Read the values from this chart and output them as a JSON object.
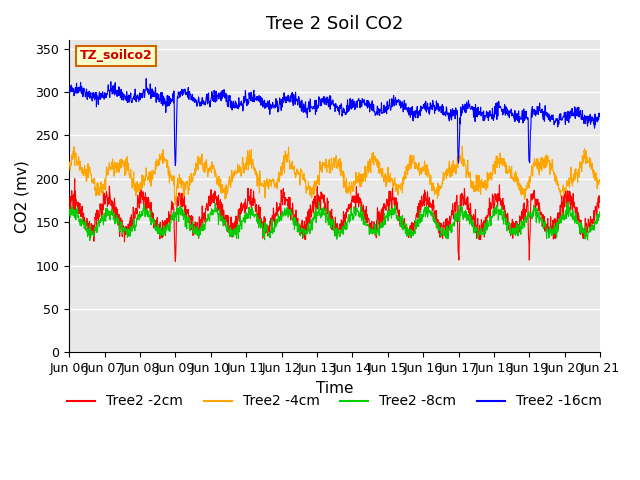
{
  "title": "Tree 2 Soil CO2",
  "ylabel": "CO2 (mv)",
  "xlabel": "Time",
  "legend_label": "TZ_soilco2",
  "series_labels": [
    "Tree2 -2cm",
    "Tree2 -4cm",
    "Tree2 -8cm",
    "Tree2 -16cm"
  ],
  "series_colors": [
    "#ff0000",
    "#ffa500",
    "#00cc00",
    "#0000ff"
  ],
  "background_color": "#e8e8e8",
  "plot_bg_color": "#e8e8e8",
  "ylim": [
    0,
    360
  ],
  "yticks": [
    0,
    50,
    100,
    150,
    200,
    250,
    300,
    350
  ],
  "start_date": "2000-06-06",
  "end_date": "2000-06-21",
  "title_fontsize": 13,
  "axis_label_fontsize": 11,
  "tick_fontsize": 9,
  "legend_fontsize": 10
}
